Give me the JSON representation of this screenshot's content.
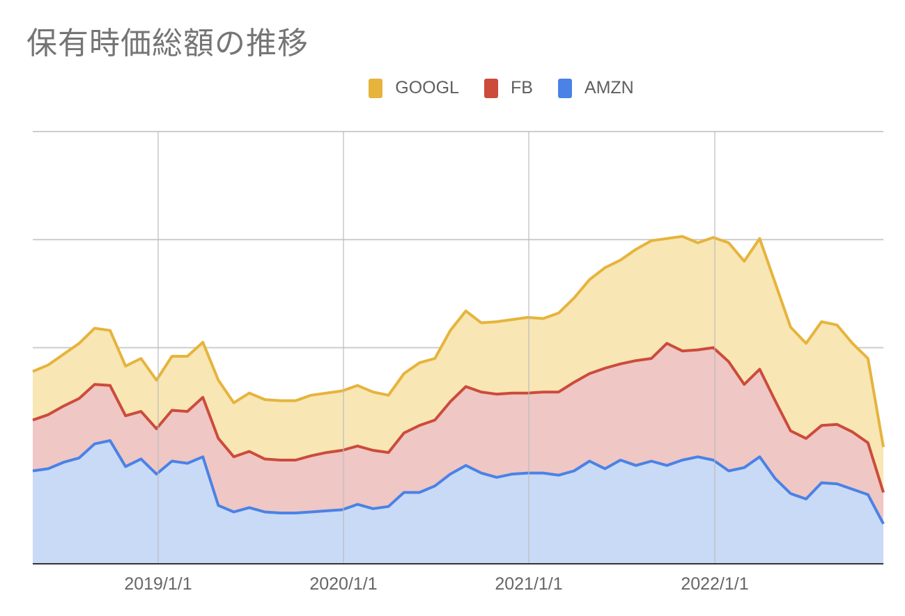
{
  "header": {
    "title": "保有時価総額の推移"
  },
  "legend": [
    {
      "label": "GOOGL",
      "color": "#E6B43C"
    },
    {
      "label": "FB",
      "color": "#CC4B3B"
    },
    {
      "label": "AMZN",
      "color": "#4A82E6"
    }
  ],
  "chart_data": {
    "type": "area",
    "stacked": true,
    "title": "保有時価総額の推移",
    "xlabel": "",
    "ylabel": "",
    "y_units_note": "no y-axis labels shown; values in gridline units (each horizontal gridline = 1 unit)",
    "ylim": [
      0,
      4
    ],
    "grid": true,
    "legend_position": "top",
    "x_tick_labels": [
      "2019/1/1",
      "2020/1/1",
      "2021/1/1",
      "2022/1/1"
    ],
    "x": [
      "2018/5",
      "2018/6",
      "2018/7",
      "2018/8",
      "2018/9",
      "2018/10",
      "2018/11",
      "2018/12",
      "2019/1",
      "2019/2",
      "2019/3",
      "2019/4",
      "2019/5",
      "2019/6",
      "2019/7",
      "2019/8",
      "2019/9",
      "2019/10",
      "2019/11",
      "2019/12",
      "2020/1",
      "2020/2",
      "2020/3",
      "2020/4",
      "2020/5",
      "2020/6",
      "2020/7",
      "2020/8",
      "2020/9",
      "2020/10",
      "2020/11",
      "2020/12",
      "2021/1",
      "2021/2",
      "2021/3",
      "2021/4",
      "2021/5",
      "2021/6",
      "2021/7",
      "2021/8",
      "2021/9",
      "2021/10",
      "2021/11",
      "2021/12",
      "2022/1",
      "2022/2",
      "2022/3",
      "2022/4",
      "2022/5",
      "2022/6",
      "2022/7",
      "2022/8",
      "2022/9",
      "2022/10",
      "2022/11",
      "2022/12"
    ],
    "series": [
      {
        "name": "AMZN",
        "color": "#4A82E6",
        "values": [
          0.86,
          0.88,
          0.94,
          0.98,
          1.11,
          1.14,
          0.9,
          0.97,
          0.83,
          0.95,
          0.93,
          0.99,
          0.54,
          0.48,
          0.52,
          0.48,
          0.47,
          0.47,
          0.48,
          0.49,
          0.5,
          0.55,
          0.51,
          0.53,
          0.66,
          0.66,
          0.72,
          0.83,
          0.91,
          0.84,
          0.8,
          0.83,
          0.84,
          0.84,
          0.82,
          0.86,
          0.95,
          0.88,
          0.96,
          0.91,
          0.95,
          0.91,
          0.96,
          0.99,
          0.96,
          0.86,
          0.89,
          0.99,
          0.79,
          0.65,
          0.6,
          0.75,
          0.74,
          0.69,
          0.64,
          0.37
        ]
      },
      {
        "name": "FB",
        "color": "#CC4B3B",
        "values": [
          0.47,
          0.5,
          0.52,
          0.55,
          0.55,
          0.51,
          0.47,
          0.44,
          0.42,
          0.47,
          0.48,
          0.55,
          0.62,
          0.51,
          0.52,
          0.49,
          0.49,
          0.49,
          0.52,
          0.54,
          0.55,
          0.54,
          0.54,
          0.5,
          0.55,
          0.62,
          0.61,
          0.67,
          0.73,
          0.75,
          0.77,
          0.75,
          0.74,
          0.75,
          0.77,
          0.82,
          0.81,
          0.93,
          0.89,
          0.97,
          0.95,
          1.13,
          1.01,
          0.99,
          1.04,
          1.01,
          0.77,
          0.81,
          0.72,
          0.58,
          0.56,
          0.53,
          0.55,
          0.53,
          0.48,
          0.29
        ]
      },
      {
        "name": "GOOGL",
        "color": "#E6B43C",
        "values": [
          0.45,
          0.46,
          0.48,
          0.51,
          0.52,
          0.51,
          0.46,
          0.49,
          0.45,
          0.5,
          0.51,
          0.51,
          0.54,
          0.5,
          0.54,
          0.55,
          0.55,
          0.55,
          0.56,
          0.55,
          0.55,
          0.56,
          0.54,
          0.53,
          0.55,
          0.58,
          0.57,
          0.66,
          0.7,
          0.64,
          0.67,
          0.68,
          0.7,
          0.68,
          0.73,
          0.78,
          0.87,
          0.93,
          0.96,
          1.03,
          1.09,
          0.97,
          1.06,
          0.99,
          1.02,
          1.1,
          1.14,
          1.21,
          1.09,
          0.96,
          0.88,
          0.96,
          0.92,
          0.82,
          0.78,
          0.42
        ]
      }
    ]
  }
}
